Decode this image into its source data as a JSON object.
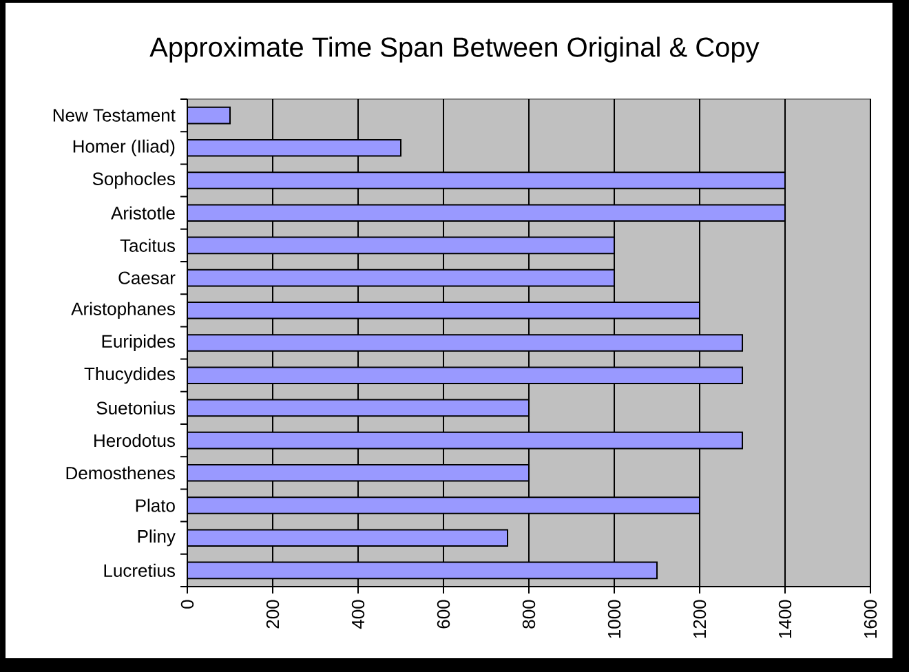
{
  "chart_data": {
    "type": "bar",
    "orientation": "horizontal",
    "title": "Approximate Time Span Between Original & Copy",
    "categories": [
      "New Testament",
      "Homer (Iliad)",
      "Sophocles",
      "Aristotle",
      "Tacitus",
      "Caesar",
      "Aristophanes",
      "Euripides",
      "Thucydides",
      "Suetonius",
      "Herodotus",
      "Demosthenes",
      "Plato",
      "Pliny",
      "Lucretius"
    ],
    "values": [
      100,
      500,
      1400,
      1400,
      1000,
      1000,
      1200,
      1300,
      1300,
      800,
      1300,
      800,
      1200,
      750,
      1100
    ],
    "color": "#9999ff",
    "xlim": [
      0,
      1600
    ],
    "xticks": [
      0,
      200,
      400,
      600,
      800,
      1000,
      1200,
      1400,
      1600
    ],
    "grid": "x"
  }
}
